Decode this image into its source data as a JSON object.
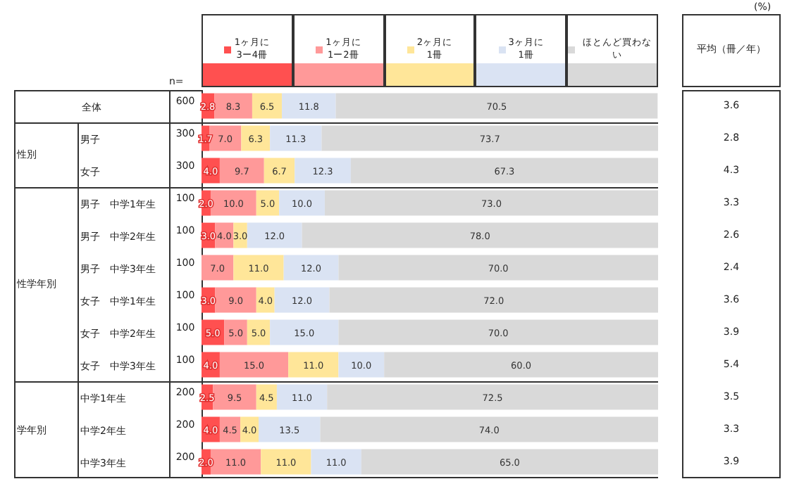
{
  "chart_data": [
    {
      "type": "bar",
      "orientation": "horizontal",
      "stacked": true,
      "legend": "top",
      "tick_labels": "y",
      "xlim": [
        0,
        100
      ],
      "categories": [
        "全体",
        "男子",
        "女子",
        "男子　中学1年生",
        "男子　中学2年生",
        "男子　中学3年生",
        "女子　中学1年生",
        "女子　中学2年生",
        "女子　中学3年生",
        "中学1年生",
        "中学2年生",
        "中学3年生"
      ],
      "series": [
        {
          "name": "1ヶ月に\n3ー4冊",
          "color": "#ff5050",
          "values": [
            2.8,
            1.7,
            4.0,
            2.0,
            3.0,
            0,
            3.0,
            5.0,
            4.0,
            2.5,
            4.0,
            2.0
          ],
          "value_labels": [
            "2.8",
            "1.7",
            "4.0",
            "2.0",
            "3.0",
            null,
            "3.0",
            "5.0",
            "4.0",
            "2.5",
            "4.0",
            "2.0"
          ]
        },
        {
          "name": "1ヶ月に\n1ー2冊",
          "color": "#ff9999",
          "values": [
            8.3,
            7.0,
            9.7,
            10.0,
            4.0,
            7.0,
            9.0,
            5.0,
            15.0,
            9.5,
            4.5,
            11.0
          ],
          "value_labels": [
            "8.3",
            "7.0",
            "9.7",
            "10.0",
            "4.0",
            "7.0",
            "9.0",
            "5.0",
            "15.0",
            "9.5",
            "4.5",
            "11.0"
          ]
        },
        {
          "name": "2ヶ月に\n1冊",
          "color": "#ffe699",
          "values": [
            6.5,
            6.3,
            6.7,
            5.0,
            3.0,
            11.0,
            4.0,
            5.0,
            11.0,
            4.5,
            4.0,
            11.0
          ],
          "value_labels": [
            "6.5",
            "6.3",
            "6.7",
            "5.0",
            "3.0",
            "11.0",
            "4.0",
            "5.0",
            "11.0",
            "4.5",
            "4.0",
            "11.0"
          ]
        },
        {
          "name": "3ヶ月に\n1冊",
          "color": "#dae3f3",
          "values": [
            11.8,
            11.3,
            12.3,
            10.0,
            12.0,
            12.0,
            12.0,
            15.0,
            10.0,
            11.0,
            13.5,
            11.0
          ],
          "value_labels": [
            "11.8",
            "11.3",
            "12.3",
            "10.0",
            "12.0",
            "12.0",
            "12.0",
            "15.0",
            "10.0",
            "11.0",
            "13.5",
            "11.0"
          ]
        },
        {
          "name": "ほとんど買わない",
          "color": "#d9d9d9",
          "values": [
            70.5,
            73.7,
            67.3,
            73.0,
            78.0,
            70.0,
            72.0,
            70.0,
            60.0,
            72.5,
            74.0,
            65.0
          ],
          "value_labels": [
            "70.5",
            "73.7",
            "67.3",
            "73.0",
            "78.0",
            "70.0",
            "72.0",
            "70.0",
            "60.0",
            "72.5",
            "74.0",
            "65.0"
          ]
        }
      ],
      "annotations": [
        "(%)",
        "性別",
        "性学年別",
        "学年別"
      ]
    },
    {
      "type": "other",
      "title": "n=",
      "values": [
        600,
        300,
        300,
        100,
        100,
        100,
        100,
        100,
        100,
        200,
        200,
        200
      ],
      "data_labels": true
    },
    {
      "type": "other",
      "title": "平均（冊／年）",
      "values": [
        3.6,
        2.8,
        4.3,
        3.3,
        2.6,
        2.4,
        3.6,
        3.9,
        5.4,
        3.5,
        3.3,
        3.9
      ],
      "data_labels": true
    }
  ]
}
